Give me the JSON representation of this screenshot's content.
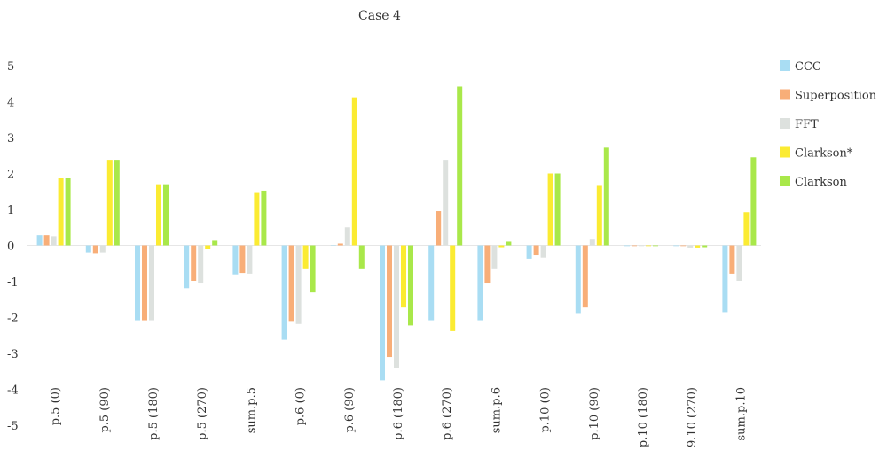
{
  "chart_data": {
    "type": "bar",
    "title": "Case 4",
    "xlabel": "",
    "ylabel": "",
    "ylim": [
      -5,
      5
    ],
    "yticks": [
      5,
      4,
      3,
      2,
      1,
      0,
      -1,
      -2,
      -3,
      -4,
      -5
    ],
    "grid": false,
    "legend_position": "right",
    "categories": [
      "p.5 (0)",
      "p.5 (90)",
      "p.5 (180)",
      "p.5 (270)",
      "sum.p.5",
      "p.6 (0)",
      "p.6 (90)",
      "p.6 (180)",
      "p.6 (270)",
      "sum.p.6",
      "p.10 (0)",
      "p.10 (90)",
      "p.10 (180)",
      "9.10 (270)",
      "sum.p.10"
    ],
    "series": [
      {
        "name": "CCC",
        "color": "#a9ddf3",
        "values": [
          0.28,
          -0.2,
          -2.1,
          -1.18,
          -0.82,
          -2.62,
          0.0,
          -3.75,
          -2.1,
          -2.1,
          -0.38,
          -1.9,
          -0.02,
          -0.02,
          -1.85
        ]
      },
      {
        "name": "Superposition",
        "color": "#f8ae78",
        "values": [
          0.28,
          -0.22,
          -2.1,
          -1.0,
          -0.78,
          -2.12,
          0.05,
          -3.1,
          0.95,
          -1.05,
          -0.26,
          -1.72,
          -0.02,
          -0.02,
          -0.8
        ]
      },
      {
        "name": "FFT",
        "color": "#dde1de",
        "values": [
          0.25,
          -0.2,
          -2.1,
          -1.05,
          -0.8,
          -2.18,
          0.5,
          -3.42,
          2.38,
          -0.65,
          -0.35,
          0.18,
          -0.02,
          -0.06,
          -1.0
        ]
      },
      {
        "name": "Clarkson*",
        "color": "#fbeb32",
        "values": [
          1.88,
          2.38,
          1.7,
          -0.1,
          1.48,
          -0.65,
          4.12,
          -1.72,
          -2.38,
          -0.05,
          2.0,
          1.68,
          -0.02,
          -0.06,
          0.92
        ]
      },
      {
        "name": "Clarkson",
        "color": "#a9e84a",
        "values": [
          1.88,
          2.38,
          1.7,
          0.15,
          1.52,
          -1.3,
          -0.65,
          -2.22,
          4.42,
          0.1,
          2.0,
          2.72,
          -0.02,
          -0.05,
          2.45
        ]
      }
    ]
  }
}
